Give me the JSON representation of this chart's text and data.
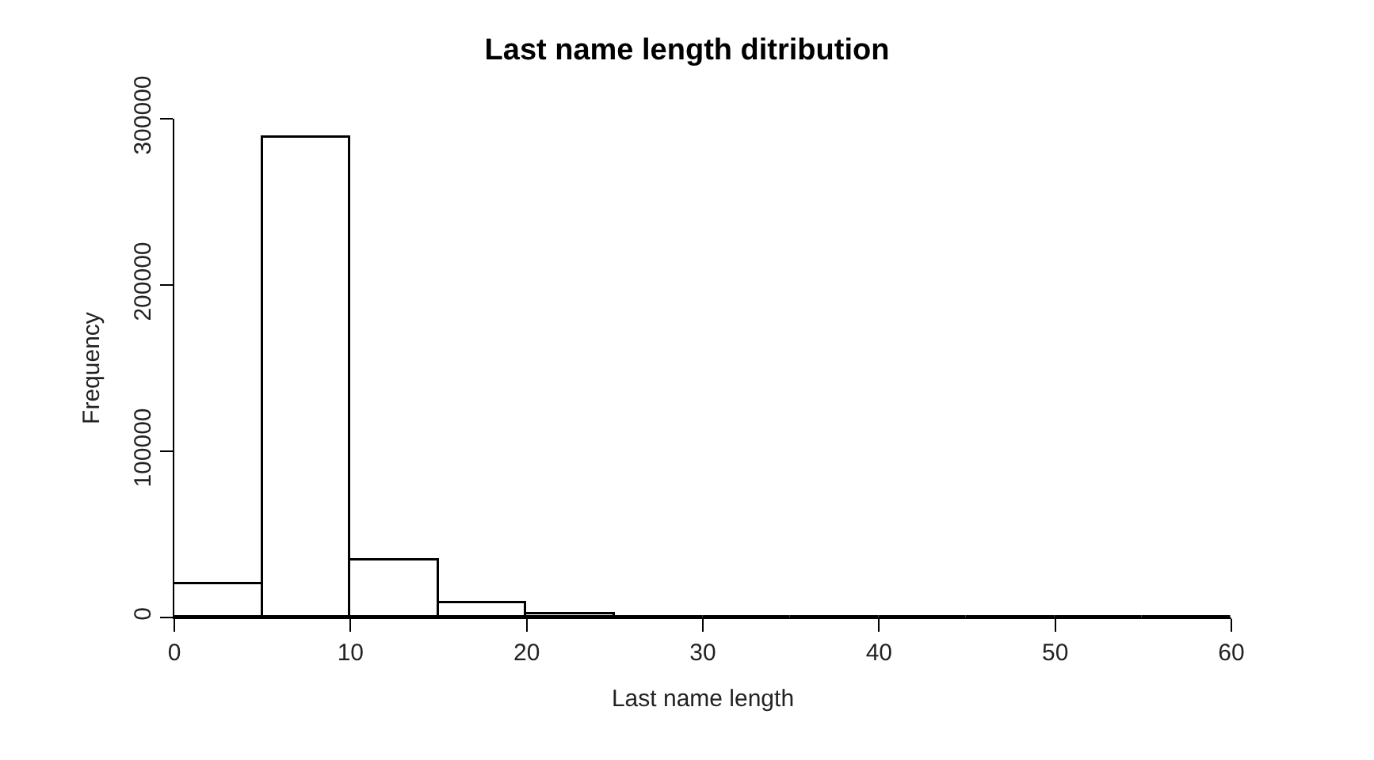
{
  "chart_data": {
    "type": "histogram",
    "title": "Last name length ditribution",
    "xlabel": "Last name length",
    "ylabel": "Frequency",
    "bins": [
      0,
      5,
      10,
      15,
      20,
      25,
      30,
      35,
      40,
      45,
      50,
      55,
      60
    ],
    "values": [
      20000,
      289000,
      34000,
      9000,
      2000,
      0,
      0,
      0,
      0,
      0,
      0,
      0
    ],
    "xlim": [
      0,
      60
    ],
    "xticks": [
      0,
      10,
      20,
      30,
      40,
      50,
      60
    ],
    "ylim": [
      0,
      300000
    ],
    "yticks": [
      0,
      100000,
      200000,
      300000
    ]
  }
}
